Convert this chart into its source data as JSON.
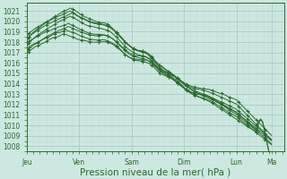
{
  "bg_color": "#cce8e0",
  "grid_major_color": "#aaccc4",
  "grid_minor_color": "#c0ddd6",
  "line_color": "#2d6a30",
  "ylabel_ticks": [
    1008,
    1009,
    1010,
    1011,
    1012,
    1013,
    1014,
    1015,
    1016,
    1017,
    1018,
    1019,
    1020,
    1021
  ],
  "ylim": [
    1007.5,
    1021.8
  ],
  "xlabel": "Pression niveau de la mer( hPa )",
  "day_labels": [
    "Jeu",
    "Ven",
    "Sam",
    "Dim",
    "Lun",
    "Ma"
  ],
  "day_positions": [
    0,
    24,
    48,
    72,
    96,
    112
  ],
  "xlim": [
    0,
    118
  ],
  "tick_fontsize": 5.5,
  "xlabel_fontsize": 7.5
}
